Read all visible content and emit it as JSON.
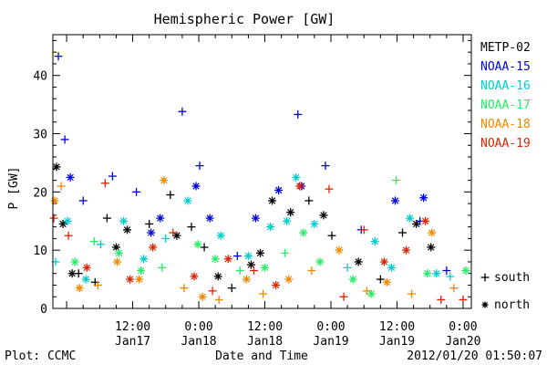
{
  "footer": {
    "plot_credit": "Plot: CCMC",
    "timestamp": "2012/01/20 01:50:07"
  },
  "chart_data": {
    "type": "scatter",
    "title": "Hemispheric Power [GW]",
    "xlabel": "Date and Time",
    "ylabel": "P [GW]",
    "ylim": [
      0,
      47
    ],
    "yticks": [
      0,
      10,
      20,
      30,
      40
    ],
    "xlim": [
      "2012-01-16T21:30",
      "2012-01-20T01:30"
    ],
    "xticks": [
      {
        "t": "2012-01-17T12:00",
        "time": "12:00",
        "date": "Jan17"
      },
      {
        "t": "2012-01-18T00:00",
        "time": "0:00",
        "date": "Jan18"
      },
      {
        "t": "2012-01-18T12:00",
        "time": "12:00",
        "date": "Jan18"
      },
      {
        "t": "2012-01-19T00:00",
        "time": "0:00",
        "date": "Jan19"
      },
      {
        "t": "2012-01-19T12:00",
        "time": "12:00",
        "date": "Jan19"
      },
      {
        "t": "2012-01-20T00:00",
        "time": "0:00",
        "date": "Jan20"
      }
    ],
    "marker_legend": [
      {
        "symbol": "+",
        "label": "south"
      },
      {
        "symbol": "*",
        "label": "north"
      }
    ],
    "series": [
      {
        "name": "METP-02",
        "color": "#000000",
        "points": [
          [
            "2012-01-16T22:10",
            24.3,
            "n"
          ],
          [
            "2012-01-16T23:20",
            14.5,
            "n"
          ],
          [
            "2012-01-17T01:00",
            6.0,
            "n"
          ],
          [
            "2012-01-17T02:10",
            6.0,
            "s"
          ],
          [
            "2012-01-17T05:10",
            4.5,
            "s"
          ],
          [
            "2012-01-17T07:20",
            15.5,
            "s"
          ],
          [
            "2012-01-17T09:00",
            10.5,
            "n"
          ],
          [
            "2012-01-17T11:00",
            13.5,
            "n"
          ],
          [
            "2012-01-17T15:00",
            14.5,
            "s"
          ],
          [
            "2012-01-17T18:50",
            19.5,
            "s"
          ],
          [
            "2012-01-17T20:00",
            12.5,
            "n"
          ],
          [
            "2012-01-17T22:40",
            14.0,
            "s"
          ],
          [
            "2012-01-18T01:00",
            10.5,
            "s"
          ],
          [
            "2012-01-18T03:30",
            5.5,
            "n"
          ],
          [
            "2012-01-18T06:00",
            3.5,
            "s"
          ],
          [
            "2012-01-18T09:30",
            7.5,
            "n"
          ],
          [
            "2012-01-18T11:10",
            9.5,
            "n"
          ],
          [
            "2012-01-18T13:20",
            18.5,
            "n"
          ],
          [
            "2012-01-18T16:40",
            16.5,
            "n"
          ],
          [
            "2012-01-18T20:00",
            18.5,
            "s"
          ],
          [
            "2012-01-18T22:40",
            16.0,
            "n"
          ],
          [
            "2012-01-19T00:10",
            12.5,
            "s"
          ],
          [
            "2012-01-19T05:00",
            8.0,
            "n"
          ],
          [
            "2012-01-19T09:00",
            5.0,
            "s"
          ],
          [
            "2012-01-19T13:00",
            13.0,
            "s"
          ],
          [
            "2012-01-19T15:30",
            14.5,
            "n"
          ],
          [
            "2012-01-19T18:10",
            10.5,
            "n"
          ]
        ]
      },
      {
        "name": "NOAA-15",
        "color": "#0000dd",
        "points": [
          [
            "2012-01-16T22:30",
            43.3,
            "s"
          ],
          [
            "2012-01-16T23:40",
            29.0,
            "s"
          ],
          [
            "2012-01-17T00:40",
            22.5,
            "n"
          ],
          [
            "2012-01-17T03:00",
            18.5,
            "s"
          ],
          [
            "2012-01-17T08:20",
            22.7,
            "s"
          ],
          [
            "2012-01-17T12:40",
            20.0,
            "s"
          ],
          [
            "2012-01-17T15:20",
            13.0,
            "n"
          ],
          [
            "2012-01-17T21:00",
            33.8,
            "s"
          ],
          [
            "2012-01-18T00:10",
            24.5,
            "s"
          ],
          [
            "2012-01-17T23:30",
            21.0,
            "n"
          ],
          [
            "2012-01-18T02:00",
            15.5,
            "n"
          ],
          [
            "2012-01-18T10:20",
            15.5,
            "n"
          ],
          [
            "2012-01-18T14:30",
            20.3,
            "n"
          ],
          [
            "2012-01-18T18:00",
            33.3,
            "s"
          ],
          [
            "2012-01-18T18:40",
            21.0,
            "n"
          ],
          [
            "2012-01-18T23:00",
            24.5,
            "s"
          ],
          [
            "2012-01-19T05:30",
            13.5,
            "s"
          ],
          [
            "2012-01-19T11:40",
            18.5,
            "n"
          ],
          [
            "2012-01-19T16:10",
            15.0,
            "s"
          ],
          [
            "2012-01-19T16:50",
            19.0,
            "n"
          ],
          [
            "2012-01-19T21:00",
            6.5,
            "s"
          ],
          [
            "2012-01-17T17:00",
            15.5,
            "n"
          ],
          [
            "2012-01-18T07:00",
            9.0,
            "s"
          ]
        ]
      },
      {
        "name": "NOAA-16",
        "color": "#00cccc",
        "points": [
          [
            "2012-01-16T22:00",
            8.0,
            "s"
          ],
          [
            "2012-01-17T00:10",
            15.0,
            "n"
          ],
          [
            "2012-01-17T03:30",
            5.0,
            "n"
          ],
          [
            "2012-01-17T06:10",
            11.0,
            "s"
          ],
          [
            "2012-01-17T10:20",
            15.0,
            "n"
          ],
          [
            "2012-01-17T14:00",
            8.5,
            "n"
          ],
          [
            "2012-01-17T18:00",
            12.0,
            "s"
          ],
          [
            "2012-01-17T22:00",
            18.5,
            "n"
          ],
          [
            "2012-01-18T04:00",
            12.5,
            "n"
          ],
          [
            "2012-01-18T09:00",
            9.0,
            "n"
          ],
          [
            "2012-01-18T13:00",
            14.0,
            "n"
          ],
          [
            "2012-01-18T16:00",
            15.0,
            "n"
          ],
          [
            "2012-01-18T17:40",
            22.5,
            "n"
          ],
          [
            "2012-01-18T21:00",
            14.5,
            "n"
          ],
          [
            "2012-01-19T03:00",
            7.0,
            "s"
          ],
          [
            "2012-01-19T08:00",
            11.5,
            "n"
          ],
          [
            "2012-01-19T11:00",
            7.0,
            "n"
          ],
          [
            "2012-01-19T14:20",
            15.5,
            "n"
          ],
          [
            "2012-01-19T19:10",
            6.0,
            "n"
          ],
          [
            "2012-01-19T21:40",
            5.5,
            "s"
          ]
        ]
      },
      {
        "name": "NOAA-17",
        "color": "#22ee66",
        "points": [
          [
            "2012-01-17T01:30",
            8.0,
            "n"
          ],
          [
            "2012-01-17T05:00",
            11.5,
            "s"
          ],
          [
            "2012-01-17T09:30",
            9.5,
            "n"
          ],
          [
            "2012-01-17T13:30",
            6.5,
            "n"
          ],
          [
            "2012-01-17T17:20",
            7.0,
            "s"
          ],
          [
            "2012-01-17T23:50",
            11.0,
            "n"
          ],
          [
            "2012-01-18T03:00",
            8.5,
            "n"
          ],
          [
            "2012-01-18T07:30",
            6.5,
            "s"
          ],
          [
            "2012-01-18T12:00",
            7.0,
            "n"
          ],
          [
            "2012-01-18T15:40",
            9.5,
            "s"
          ],
          [
            "2012-01-18T19:00",
            13.0,
            "n"
          ],
          [
            "2012-01-18T22:00",
            8.0,
            "n"
          ],
          [
            "2012-01-19T04:00",
            5.0,
            "n"
          ],
          [
            "2012-01-19T07:20",
            2.5,
            "n"
          ],
          [
            "2012-01-19T11:50",
            22.0,
            "s"
          ],
          [
            "2012-01-19T17:30",
            6.0,
            "n"
          ],
          [
            "2012-01-20T00:30",
            6.5,
            "n"
          ]
        ]
      },
      {
        "name": "NOAA-18",
        "color": "#ee8800",
        "points": [
          [
            "2012-01-16T21:50",
            18.5,
            "n"
          ],
          [
            "2012-01-16T23:00",
            21.0,
            "s"
          ],
          [
            "2012-01-17T02:20",
            3.5,
            "n"
          ],
          [
            "2012-01-17T05:40",
            4.0,
            "s"
          ],
          [
            "2012-01-17T09:10",
            8.0,
            "n"
          ],
          [
            "2012-01-17T13:10",
            5.0,
            "n"
          ],
          [
            "2012-01-17T17:40",
            22.0,
            "n"
          ],
          [
            "2012-01-17T21:20",
            3.5,
            "s"
          ],
          [
            "2012-01-18T00:40",
            2.0,
            "n"
          ],
          [
            "2012-01-18T03:40",
            1.5,
            "s"
          ],
          [
            "2012-01-18T08:40",
            5.0,
            "n"
          ],
          [
            "2012-01-18T11:40",
            2.5,
            "s"
          ],
          [
            "2012-01-18T16:20",
            5.0,
            "n"
          ],
          [
            "2012-01-18T20:30",
            6.5,
            "s"
          ],
          [
            "2012-01-19T01:30",
            10.0,
            "n"
          ],
          [
            "2012-01-19T06:30",
            3.0,
            "s"
          ],
          [
            "2012-01-19T10:10",
            4.5,
            "n"
          ],
          [
            "2012-01-19T14:40",
            2.5,
            "s"
          ],
          [
            "2012-01-19T18:20",
            13.0,
            "n"
          ],
          [
            "2012-01-19T22:20",
            3.5,
            "s"
          ]
        ]
      },
      {
        "name": "NOAA-19",
        "color": "#dd2200",
        "points": [
          [
            "2012-01-16T21:40",
            15.5,
            "s"
          ],
          [
            "2012-01-17T00:20",
            12.5,
            "s"
          ],
          [
            "2012-01-17T03:40",
            7.0,
            "n"
          ],
          [
            "2012-01-17T07:00",
            21.5,
            "s"
          ],
          [
            "2012-01-17T11:30",
            5.0,
            "n"
          ],
          [
            "2012-01-17T15:40",
            10.5,
            "n"
          ],
          [
            "2012-01-17T19:20",
            13.0,
            "s"
          ],
          [
            "2012-01-17T23:10",
            5.5,
            "n"
          ],
          [
            "2012-01-18T02:30",
            3.0,
            "s"
          ],
          [
            "2012-01-18T05:20",
            8.5,
            "n"
          ],
          [
            "2012-01-18T10:00",
            6.5,
            "s"
          ],
          [
            "2012-01-18T14:00",
            4.0,
            "n"
          ],
          [
            "2012-01-18T18:20",
            21.0,
            "n"
          ],
          [
            "2012-01-18T23:40",
            20.5,
            "s"
          ],
          [
            "2012-01-19T02:20",
            2.0,
            "s"
          ],
          [
            "2012-01-19T06:00",
            13.5,
            "s"
          ],
          [
            "2012-01-19T09:40",
            8.0,
            "n"
          ],
          [
            "2012-01-19T13:40",
            10.0,
            "n"
          ],
          [
            "2012-01-19T17:10",
            15.0,
            "n"
          ],
          [
            "2012-01-19T20:00",
            1.5,
            "s"
          ],
          [
            "2012-01-20T00:00",
            1.5,
            "s"
          ]
        ]
      }
    ]
  }
}
